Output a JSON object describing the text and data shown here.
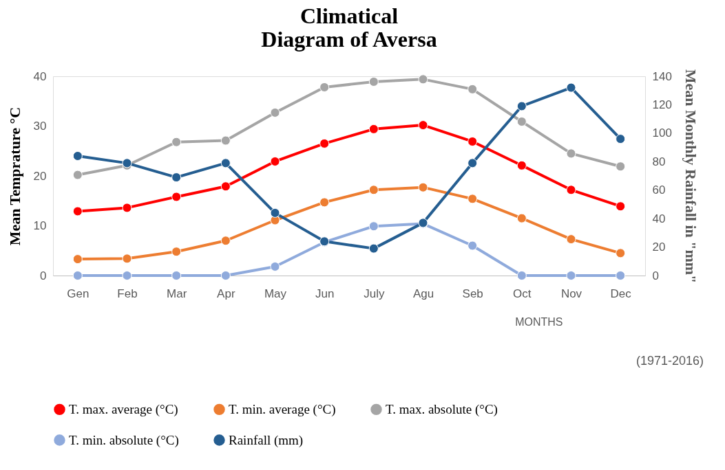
{
  "chart_data": {
    "type": "line",
    "title": "Climatical\nDiagram of Aversa",
    "xlabel": "MONTHS",
    "ylabel": "Mean Temprature °C",
    "y2label": "Mean Monthly Rainfall in \"mm\"",
    "categories": [
      "Gen",
      "Feb",
      "Mar",
      "Apr",
      "May",
      "Jun",
      "July",
      "Agu",
      "Seb",
      "Oct",
      "Nov",
      "Dec"
    ],
    "series": [
      {
        "name": "T. max. average (°C)",
        "color": "#ff0000",
        "values": [
          12.9,
          13.6,
          15.8,
          17.9,
          22.9,
          26.5,
          29.4,
          30.2,
          26.9,
          22.1,
          17.2,
          13.9
        ]
      },
      {
        "name": "T. min. average (°C)",
        "color": "#ed7d31",
        "values": [
          3.3,
          3.4,
          4.8,
          7.0,
          11.1,
          14.7,
          17.2,
          17.7,
          15.4,
          11.5,
          7.3,
          4.5
        ]
      },
      {
        "name": "T. max. absolute (°C)",
        "color": "#a5a5a5",
        "values": [
          20.2,
          22.1,
          26.8,
          27.1,
          32.7,
          37.8,
          38.9,
          39.4,
          37.4,
          30.9,
          24.5,
          21.9
        ]
      },
      {
        "name": "T. min. absolute (°C)",
        "color": "#8faadc",
        "values": [
          0,
          0,
          0,
          0,
          1.8,
          6.7,
          9.9,
          10.4,
          6.0,
          0,
          0,
          0
        ]
      },
      {
        "name": "Rainfall (mm)",
        "color": "#255e91",
        "axis": "y2",
        "values": [
          84,
          79,
          69,
          79,
          44,
          24,
          19,
          37,
          79,
          119,
          132,
          96
        ]
      }
    ],
    "ylim": [
      0,
      40
    ],
    "yticks": [
      0,
      10,
      20,
      30,
      40
    ],
    "y2lim": [
      0,
      140
    ],
    "y2ticks": [
      0,
      20,
      40,
      60,
      80,
      100,
      120,
      140
    ],
    "annotations": [
      "(1971-2016)"
    ],
    "grid": false,
    "legend": "bottom",
    "marker": "circle",
    "line_style": "solid"
  }
}
